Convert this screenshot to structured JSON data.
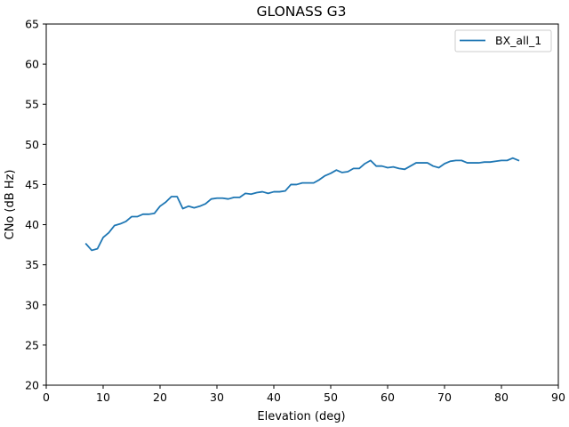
{
  "chart_data": {
    "type": "line",
    "title": "GLONASS G3",
    "xlabel": "Elevation (deg)",
    "ylabel": "CNo (dB Hz)",
    "xlim": [
      0,
      90
    ],
    "ylim": [
      20,
      65
    ],
    "xticks": [
      0,
      10,
      20,
      30,
      40,
      50,
      60,
      70,
      80,
      90
    ],
    "yticks": [
      20,
      25,
      30,
      35,
      40,
      45,
      50,
      55,
      60,
      65
    ],
    "grid": false,
    "legend_position": "top-right",
    "series": [
      {
        "name": "BX_all_1",
        "color": "#1f77b4",
        "x": [
          7,
          8,
          9,
          10,
          11,
          12,
          13,
          14,
          15,
          16,
          17,
          18,
          19,
          20,
          21,
          22,
          23,
          24,
          25,
          26,
          27,
          28,
          29,
          30,
          31,
          32,
          33,
          34,
          35,
          36,
          37,
          38,
          39,
          40,
          41,
          42,
          43,
          44,
          45,
          46,
          47,
          48,
          49,
          50,
          51,
          52,
          53,
          54,
          55,
          56,
          57,
          58,
          59,
          60,
          61,
          62,
          63,
          64,
          65,
          66,
          67,
          68,
          69,
          70,
          71,
          72,
          73,
          74,
          75,
          76,
          77,
          78,
          79,
          80,
          81,
          82,
          83
        ],
        "y": [
          37.6,
          36.8,
          37.0,
          38.4,
          39.0,
          39.9,
          40.1,
          40.4,
          41.0,
          41.0,
          41.3,
          41.3,
          41.4,
          42.3,
          42.8,
          43.5,
          43.5,
          42.0,
          42.3,
          42.1,
          42.3,
          42.6,
          43.2,
          43.3,
          43.3,
          43.2,
          43.4,
          43.4,
          43.9,
          43.8,
          44.0,
          44.1,
          43.9,
          44.1,
          44.1,
          44.2,
          45.0,
          45.0,
          45.2,
          45.2,
          45.2,
          45.6,
          46.1,
          46.4,
          46.8,
          46.5,
          46.6,
          47.0,
          47.0,
          47.6,
          48.0,
          47.3,
          47.3,
          47.1,
          47.2,
          47.0,
          46.9,
          47.3,
          47.7,
          47.7,
          47.7,
          47.3,
          47.1,
          47.6,
          47.9,
          48.0,
          48.0,
          47.7,
          47.7,
          47.7,
          47.8,
          47.8,
          47.9,
          48.0,
          48.0,
          48.3,
          48.0
        ]
      }
    ]
  }
}
